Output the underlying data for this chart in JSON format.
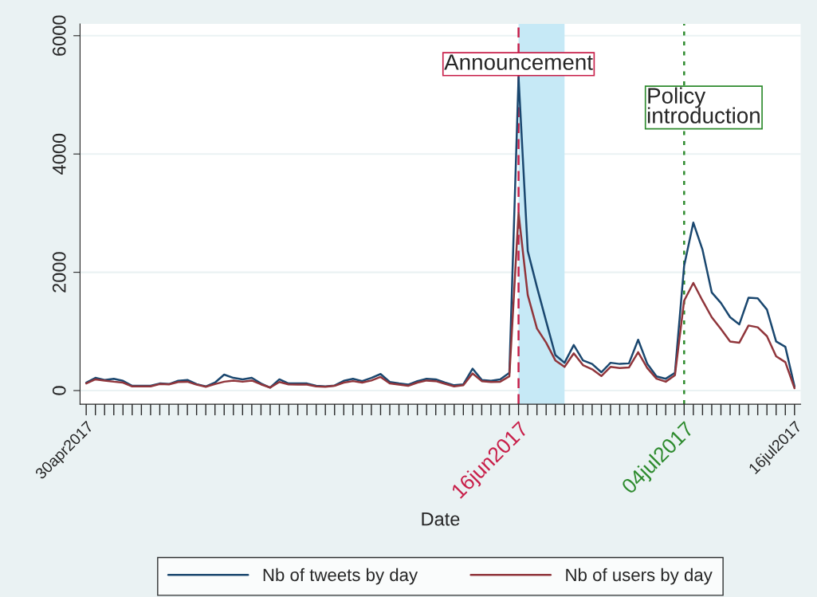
{
  "chart_data": {
    "type": "line",
    "xlabel": "Date",
    "x": [
      "2017-04-30",
      "2017-05-01",
      "2017-05-02",
      "2017-05-03",
      "2017-05-04",
      "2017-05-05",
      "2017-05-06",
      "2017-05-07",
      "2017-05-08",
      "2017-05-09",
      "2017-05-10",
      "2017-05-11",
      "2017-05-12",
      "2017-05-13",
      "2017-05-14",
      "2017-05-15",
      "2017-05-16",
      "2017-05-17",
      "2017-05-18",
      "2017-05-19",
      "2017-05-20",
      "2017-05-21",
      "2017-05-22",
      "2017-05-23",
      "2017-05-24",
      "2017-05-25",
      "2017-05-26",
      "2017-05-27",
      "2017-05-28",
      "2017-05-29",
      "2017-05-30",
      "2017-05-31",
      "2017-06-01",
      "2017-06-02",
      "2017-06-03",
      "2017-06-04",
      "2017-06-05",
      "2017-06-06",
      "2017-06-07",
      "2017-06-08",
      "2017-06-09",
      "2017-06-10",
      "2017-06-11",
      "2017-06-12",
      "2017-06-13",
      "2017-06-14",
      "2017-06-15",
      "2017-06-16",
      "2017-06-17",
      "2017-06-18",
      "2017-06-19",
      "2017-06-20",
      "2017-06-21",
      "2017-06-22",
      "2017-06-23",
      "2017-06-24",
      "2017-06-25",
      "2017-06-26",
      "2017-06-27",
      "2017-06-28",
      "2017-06-29",
      "2017-06-30",
      "2017-07-01",
      "2017-07-02",
      "2017-07-03",
      "2017-07-04",
      "2017-07-05",
      "2017-07-06",
      "2017-07-07",
      "2017-07-08",
      "2017-07-09",
      "2017-07-10",
      "2017-07-11",
      "2017-07-12",
      "2017-07-13",
      "2017-07-14",
      "2017-07-15",
      "2017-07-16"
    ],
    "series": [
      {
        "name": "Nb of tweets by day",
        "color": "#1a476f",
        "values": [
          135,
          215,
          180,
          200,
          165,
          80,
          80,
          80,
          120,
          110,
          165,
          180,
          110,
          70,
          135,
          270,
          215,
          190,
          215,
          120,
          50,
          190,
          120,
          120,
          120,
          80,
          70,
          85,
          165,
          200,
          160,
          215,
          280,
          145,
          120,
          100,
          160,
          200,
          190,
          135,
          90,
          105,
          370,
          180,
          165,
          190,
          300,
          5300,
          2360,
          1750,
          1170,
          600,
          470,
          770,
          510,
          450,
          310,
          470,
          450,
          460,
          860,
          450,
          240,
          200,
          300,
          2110,
          2840,
          2380,
          1660,
          1480,
          1240,
          1120,
          1570,
          1560,
          1370,
          830,
          740,
          70
        ]
      },
      {
        "name": "Nb of users by day",
        "color": "#90353b",
        "values": [
          120,
          190,
          170,
          150,
          135,
          70,
          70,
          70,
          110,
          105,
          145,
          150,
          100,
          65,
          110,
          150,
          170,
          150,
          170,
          105,
          50,
          145,
          105,
          100,
          100,
          70,
          65,
          80,
          135,
          160,
          135,
          170,
          230,
          120,
          100,
          80,
          135,
          170,
          160,
          115,
          70,
          90,
          290,
          160,
          145,
          150,
          240,
          3000,
          1615,
          1050,
          810,
          510,
          400,
          630,
          430,
          360,
          245,
          400,
          380,
          390,
          650,
          380,
          200,
          150,
          260,
          1520,
          1820,
          1520,
          1240,
          1040,
          830,
          810,
          1100,
          1070,
          920,
          580,
          480,
          40
        ]
      }
    ],
    "xlim": [
      "2017-04-29T08:00",
      "2017-07-16T16:00"
    ],
    "ylim": [
      -230,
      6200
    ],
    "yticks": [
      0,
      2000,
      4000,
      6000
    ],
    "xticks": [
      {
        "value": "2017-04-30",
        "label": "30apr2017"
      },
      {
        "value": "2017-05-01",
        "label": null
      },
      {
        "value": "2017-05-02",
        "label": null
      },
      {
        "value": "2017-05-03",
        "label": null
      },
      {
        "value": "2017-05-04",
        "label": null
      },
      {
        "value": "2017-05-05",
        "label": null
      },
      {
        "value": "2017-05-06",
        "label": null
      },
      {
        "value": "2017-05-07",
        "label": null
      },
      {
        "value": "2017-05-08",
        "label": null
      },
      {
        "value": "2017-05-09",
        "label": null
      },
      {
        "value": "2017-05-10",
        "label": null
      },
      {
        "value": "2017-05-11",
        "label": null
      },
      {
        "value": "2017-05-12",
        "label": null
      },
      {
        "value": "2017-05-13",
        "label": null
      },
      {
        "value": "2017-05-14",
        "label": null
      },
      {
        "value": "2017-05-15",
        "label": null
      },
      {
        "value": "2017-05-16",
        "label": null
      },
      {
        "value": "2017-05-17",
        "label": null
      },
      {
        "value": "2017-05-18",
        "label": null
      },
      {
        "value": "2017-05-19",
        "label": null
      },
      {
        "value": "2017-05-20",
        "label": null
      },
      {
        "value": "2017-05-21",
        "label": null
      },
      {
        "value": "2017-05-22",
        "label": null
      },
      {
        "value": "2017-05-23",
        "label": null
      },
      {
        "value": "2017-05-24",
        "label": null
      },
      {
        "value": "2017-05-25",
        "label": null
      },
      {
        "value": "2017-05-26",
        "label": null
      },
      {
        "value": "2017-05-27",
        "label": null
      },
      {
        "value": "2017-05-28",
        "label": null
      },
      {
        "value": "2017-05-29",
        "label": null
      },
      {
        "value": "2017-05-30",
        "label": null
      },
      {
        "value": "2017-05-31",
        "label": null
      },
      {
        "value": "2017-06-01",
        "label": null
      },
      {
        "value": "2017-06-02",
        "label": null
      },
      {
        "value": "2017-06-03",
        "label": null
      },
      {
        "value": "2017-06-04",
        "label": null
      },
      {
        "value": "2017-06-05",
        "label": null
      },
      {
        "value": "2017-06-06",
        "label": null
      },
      {
        "value": "2017-06-07",
        "label": null
      },
      {
        "value": "2017-06-08",
        "label": null
      },
      {
        "value": "2017-06-09",
        "label": null
      },
      {
        "value": "2017-06-10",
        "label": null
      },
      {
        "value": "2017-06-11",
        "label": null
      },
      {
        "value": "2017-06-12",
        "label": null
      },
      {
        "value": "2017-06-13",
        "label": null
      },
      {
        "value": "2017-06-14",
        "label": null
      },
      {
        "value": "2017-06-15",
        "label": null
      },
      {
        "value": "2017-06-16",
        "label": "16jun2017"
      },
      {
        "value": "2017-06-17",
        "label": null
      },
      {
        "value": "2017-06-18",
        "label": null
      },
      {
        "value": "2017-06-19",
        "label": null
      },
      {
        "value": "2017-06-20",
        "label": null
      },
      {
        "value": "2017-06-21",
        "label": null
      },
      {
        "value": "2017-06-22",
        "label": null
      },
      {
        "value": "2017-06-23",
        "label": null
      },
      {
        "value": "2017-06-24",
        "label": null
      },
      {
        "value": "2017-06-25",
        "label": null
      },
      {
        "value": "2017-06-26",
        "label": null
      },
      {
        "value": "2017-06-27",
        "label": null
      },
      {
        "value": "2017-06-28",
        "label": null
      },
      {
        "value": "2017-06-29",
        "label": null
      },
      {
        "value": "2017-06-30",
        "label": null
      },
      {
        "value": "2017-07-01",
        "label": null
      },
      {
        "value": "2017-07-02",
        "label": null
      },
      {
        "value": "2017-07-03",
        "label": null
      },
      {
        "value": "2017-07-04",
        "label": "04jul2017"
      },
      {
        "value": "2017-07-05",
        "label": null
      },
      {
        "value": "2017-07-06",
        "label": null
      },
      {
        "value": "2017-07-07",
        "label": null
      },
      {
        "value": "2017-07-08",
        "label": null
      },
      {
        "value": "2017-07-09",
        "label": null
      },
      {
        "value": "2017-07-10",
        "label": null
      },
      {
        "value": "2017-07-11",
        "label": null
      },
      {
        "value": "2017-07-12",
        "label": null
      },
      {
        "value": "2017-07-13",
        "label": null
      },
      {
        "value": "2017-07-14",
        "label": null
      },
      {
        "value": "2017-07-15",
        "label": null
      },
      {
        "value": "2017-07-16",
        "label": "16jul2017"
      }
    ],
    "ref_lines": [
      {
        "axis": "x",
        "value": "2017-06-16",
        "color": "#c8204a",
        "line_style": "dashed"
      },
      {
        "axis": "x",
        "value": "2017-07-04",
        "color": "#2e8b2e",
        "line_style": "dotted"
      }
    ],
    "bands": [
      {
        "axis": "x",
        "from": "2017-06-16",
        "to": "2017-06-21",
        "color": "#c6e9f6"
      }
    ],
    "annotations": [
      {
        "text": "Announcement",
        "x": "2017-06-16",
        "y": 5520
      },
      "Policy\nintroduction"
    ],
    "grid": "y",
    "legend": "bottom",
    "marker": "none",
    "line_style": "solid"
  }
}
